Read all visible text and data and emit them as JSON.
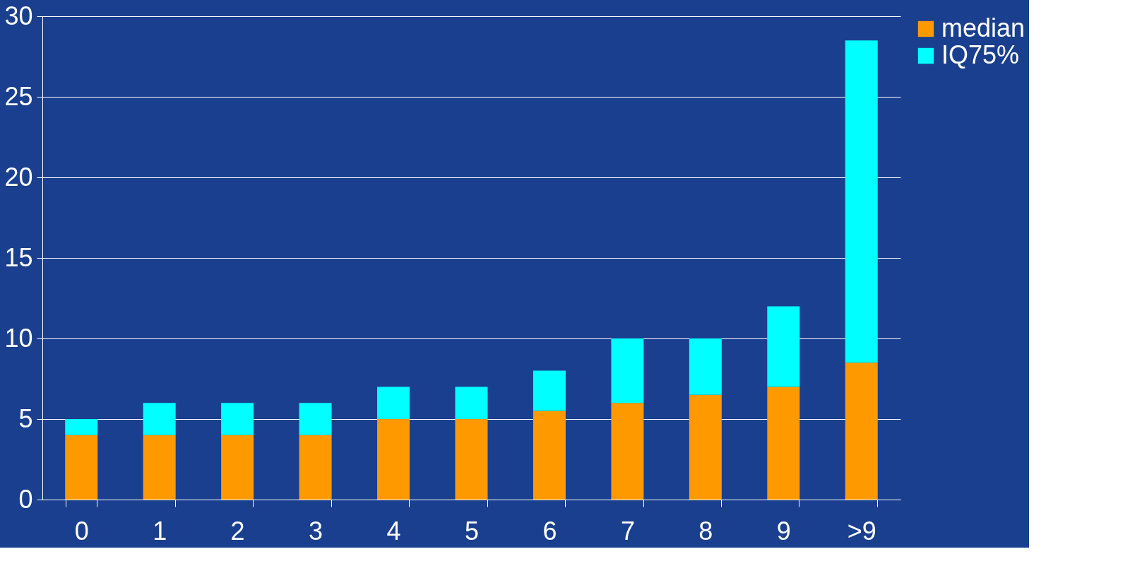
{
  "chart_data": {
    "type": "bar",
    "stacked": true,
    "categories": [
      "0",
      "1",
      "2",
      "3",
      "4",
      "5",
      "6",
      "7",
      "8",
      "9",
      ">9"
    ],
    "series": [
      {
        "name": "median",
        "color": "#ff9900",
        "values": [
          4,
          4,
          4,
          4,
          5,
          5,
          5.5,
          6,
          6.5,
          7,
          8.5
        ]
      },
      {
        "name": "IQ75%",
        "color": "#00ffff",
        "values": [
          1,
          2,
          2,
          2,
          2,
          2,
          2.5,
          4,
          3.5,
          5,
          20
        ]
      }
    ],
    "ylim": [
      0,
      30
    ],
    "yticks": [
      0,
      5,
      10,
      15,
      20,
      25,
      30
    ],
    "grid": "y",
    "legend": "right"
  }
}
